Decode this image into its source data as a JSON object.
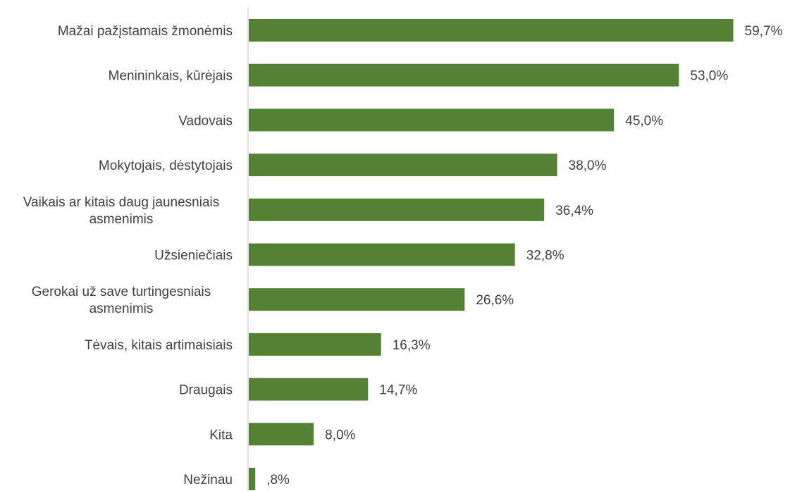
{
  "chart_data": {
    "type": "bar",
    "orientation": "horizontal",
    "categories": [
      "Mažai pažįstamais žmonėmis",
      "Menininkais, kūrėjais",
      "Vadovais",
      "Mokytojais, dėstytojais",
      "Vaikais ar kitais daug jaunesniais asmenimis",
      "Užsieniečiais",
      "Gerokai už save turtingesniais asmenimis",
      "Tėvais, kitais artimaisiais",
      "Draugais",
      "Kita",
      "Nežinau"
    ],
    "category_lines": [
      [
        "Mažai pažįstamais žmonėmis"
      ],
      [
        "Menininkais, kūrėjais"
      ],
      [
        "Vadovais"
      ],
      [
        "Mokytojais, dėstytojais"
      ],
      [
        "Vaikais ar kitais daug jaunesniais",
        "asmenimis"
      ],
      [
        "Užsieniečiais"
      ],
      [
        "Gerokai už save turtingesniais",
        "asmenimis"
      ],
      [
        "Tėvais, kitais artimaisiais"
      ],
      [
        "Draugais"
      ],
      [
        "Kita"
      ],
      [
        "Nežinau"
      ]
    ],
    "values": [
      59.7,
      53.0,
      45.0,
      38.0,
      36.4,
      32.8,
      26.6,
      16.3,
      14.7,
      8.0,
      0.8
    ],
    "value_labels": [
      "59,7%",
      "53,0%",
      "45,0%",
      "38,0%",
      "36,4%",
      "32,8%",
      "26,6%",
      "16,3%",
      "14,7%",
      "8,0%",
      ",8%"
    ],
    "xlim": [
      0,
      60
    ],
    "bar_color": "#548235",
    "axis_color": "#d9d9d9",
    "text_color": "#404040",
    "grid": false,
    "legend": "none"
  }
}
